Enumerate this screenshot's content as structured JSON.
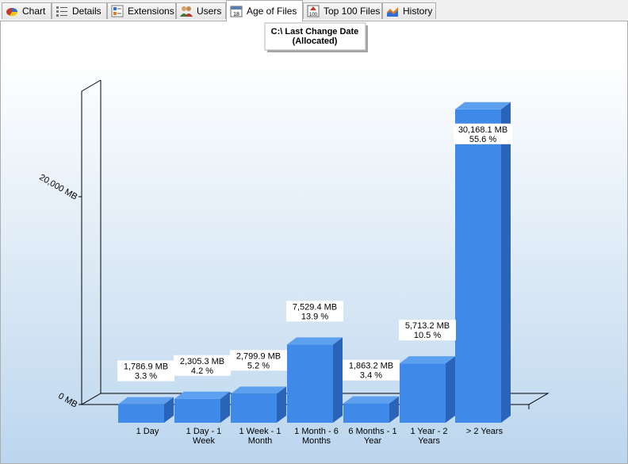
{
  "tabs": [
    {
      "label": "Chart",
      "icon": "pie-chart-icon",
      "active": false
    },
    {
      "label": "Details",
      "icon": "details-list-icon",
      "active": false
    },
    {
      "label": "Extensions",
      "icon": "extensions-icon",
      "active": false
    },
    {
      "label": "Users",
      "icon": "users-icon",
      "active": false
    },
    {
      "label": "Age of Files",
      "icon": "calendar-icon",
      "active": true
    },
    {
      "label": "Top 100 Files",
      "icon": "top-100-icon",
      "active": false
    },
    {
      "label": "History",
      "icon": "history-chart-icon",
      "active": false
    }
  ],
  "colors": {
    "bar_front": "#3f8ae8",
    "bar_side": "#2a64b8",
    "bar_top": "#5ea0f0",
    "panel_bottom": "#bcd6ee"
  },
  "chart_data": {
    "type": "bar",
    "title": "C:\\ Last Change Date",
    "subtitle": "(Allocated)",
    "categories": [
      [
        "1 Day"
      ],
      [
        "1 Day - 1",
        "Week"
      ],
      [
        "1 Week - 1",
        "Month"
      ],
      [
        "1 Month - 6",
        "Months"
      ],
      [
        "6 Months - 1",
        "Year"
      ],
      [
        "1 Year - 2",
        "Years"
      ],
      [
        "> 2 Years"
      ]
    ],
    "values": [
      1786.9,
      2305.3,
      2799.9,
      7529.4,
      1863.2,
      5713.2,
      30168.1
    ],
    "value_labels": [
      "1,786.9 MB",
      "2,305.3 MB",
      "2,799.9 MB",
      "7,529.4 MB",
      "1,863.2 MB",
      "5,713.2 MB",
      "30,168.1 MB"
    ],
    "percent_labels": [
      "3.3 %",
      "4.2 %",
      "5.2 %",
      "13.9 %",
      "3.4 %",
      "10.5 %",
      "55.6 %"
    ],
    "y_ticks": [
      {
        "value": 0,
        "label": "0 MB"
      },
      {
        "value": 20000,
        "label": "20,000 MB"
      }
    ],
    "ylim": [
      0,
      30168.1
    ],
    "grid": false,
    "legend": "none",
    "style": "3d"
  }
}
